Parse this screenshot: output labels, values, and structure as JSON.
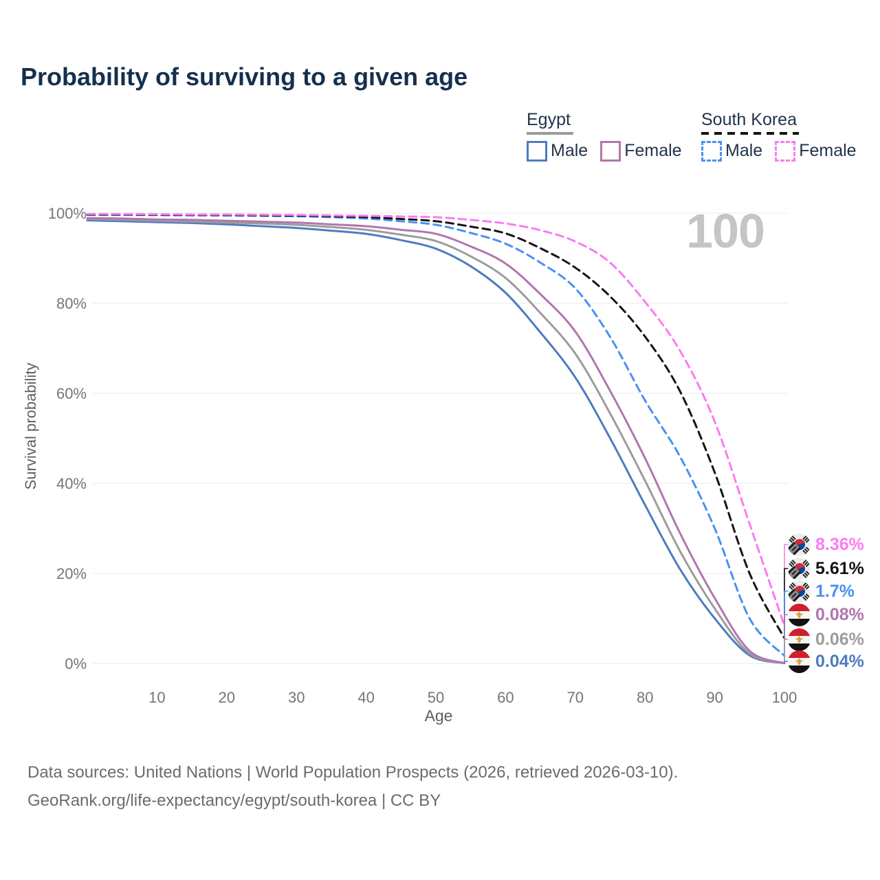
{
  "title": "Probability of surviving to a given age",
  "annotation_age": "100",
  "legend": {
    "groups": [
      {
        "label": "Egypt",
        "line_style": "solid",
        "items": [
          {
            "label": "Male",
            "color": "#4d7cc0"
          },
          {
            "label": "Female",
            "color": "#b176ad"
          }
        ]
      },
      {
        "label": "South Korea",
        "line_style": "dashed",
        "items": [
          {
            "label": "Male",
            "color": "#4a90f5"
          },
          {
            "label": "Female",
            "color": "#fb7bf0"
          }
        ]
      }
    ]
  },
  "chart_data": {
    "type": "line",
    "title": "Probability of surviving to a given age",
    "xlabel": "Age",
    "ylabel": "Survival probability",
    "xlim": [
      0,
      100
    ],
    "ylim": [
      0,
      100
    ],
    "grid": "horizontal",
    "x_ticks": [
      {
        "value": 10,
        "label": "10"
      },
      {
        "value": 20,
        "label": "20"
      },
      {
        "value": 30,
        "label": "30"
      },
      {
        "value": 40,
        "label": "40"
      },
      {
        "value": 50,
        "label": "50"
      },
      {
        "value": 60,
        "label": "60"
      },
      {
        "value": 70,
        "label": "70"
      },
      {
        "value": 80,
        "label": "80"
      },
      {
        "value": 90,
        "label": "90"
      },
      {
        "value": 100,
        "label": "100"
      }
    ],
    "y_ticks": [
      {
        "value": 0,
        "label": "0%"
      },
      {
        "value": 20,
        "label": "20%"
      },
      {
        "value": 40,
        "label": "40%"
      },
      {
        "value": 60,
        "label": "60%"
      },
      {
        "value": 80,
        "label": "80%"
      },
      {
        "value": 100,
        "label": "100%"
      }
    ],
    "x": [
      0,
      5,
      10,
      15,
      20,
      25,
      30,
      35,
      40,
      45,
      50,
      55,
      60,
      65,
      70,
      75,
      80,
      85,
      90,
      95,
      100
    ],
    "series": [
      {
        "id": "egypt-male",
        "name": "Egypt Male",
        "country": "Egypt",
        "sex": "Male",
        "color": "#4d7cc0",
        "dashed": false,
        "flag": "eg",
        "end_label": "0.04%",
        "values": [
          98.4,
          98.2,
          98.0,
          97.8,
          97.5,
          97.1,
          96.7,
          96.1,
          95.4,
          94.0,
          92.1,
          88.2,
          82.3,
          73.5,
          63.5,
          50.0,
          35.2,
          21.0,
          10.0,
          1.8,
          0.04
        ]
      },
      {
        "id": "egypt-both",
        "name": "Egypt Both sexes",
        "country": "Egypt",
        "sex": "Both sexes",
        "color": "#9c9c9c",
        "dashed": false,
        "flag": "eg",
        "end_label": "0.06%",
        "values": [
          98.7,
          98.5,
          98.3,
          98.1,
          97.9,
          97.7,
          97.4,
          96.9,
          96.3,
          95.2,
          93.8,
          90.4,
          85.6,
          77.8,
          68.8,
          55.5,
          40.6,
          25.0,
          12.2,
          2.2,
          0.06
        ]
      },
      {
        "id": "egypt-female",
        "name": "Egypt Female",
        "country": "Egypt",
        "sex": "Female",
        "color": "#b176ad",
        "dashed": false,
        "flag": "eg",
        "end_label": "0.08%",
        "values": [
          98.9,
          98.8,
          98.6,
          98.5,
          98.3,
          98.1,
          97.9,
          97.5,
          97.1,
          96.3,
          95.4,
          92.6,
          88.8,
          82.0,
          73.7,
          60.5,
          45.6,
          29.0,
          14.5,
          2.8,
          0.08
        ]
      },
      {
        "id": "south-korea-male",
        "name": "South Korea Male",
        "country": "South Korea",
        "sex": "Male",
        "color": "#4a90f5",
        "dashed": true,
        "flag": "kr",
        "end_label": "1.7%",
        "values": [
          99.6,
          99.6,
          99.55,
          99.5,
          99.45,
          99.4,
          99.3,
          99.1,
          98.8,
          98.2,
          97.4,
          95.6,
          93.2,
          89.0,
          83.3,
          72.5,
          58.4,
          46.0,
          30.0,
          10.0,
          1.7
        ]
      },
      {
        "id": "south-korea-both",
        "name": "South Korea Both sexes",
        "country": "South Korea",
        "sex": "Both sexes",
        "color": "#141414",
        "dashed": true,
        "flag": "kr",
        "end_label": "5.61%",
        "values": [
          99.7,
          99.7,
          99.65,
          99.6,
          99.6,
          99.5,
          99.45,
          99.3,
          99.1,
          98.7,
          98.2,
          97.0,
          95.5,
          92.2,
          87.9,
          81.5,
          72.6,
          60.5,
          42.4,
          20.0,
          5.61
        ]
      },
      {
        "id": "south-korea-female",
        "name": "South Korea Female",
        "country": "South Korea",
        "sex": "Female",
        "color": "#fb7bf0",
        "dashed": true,
        "flag": "kr",
        "end_label": "8.36%",
        "values": [
          99.8,
          99.8,
          99.75,
          99.7,
          99.7,
          99.65,
          99.6,
          99.5,
          99.4,
          99.25,
          99.1,
          98.5,
          97.7,
          96.2,
          93.7,
          89.0,
          80.3,
          69.5,
          53.7,
          31.0,
          8.36
        ]
      }
    ]
  },
  "source": {
    "line1": "Data sources: United Nations | World Population Prospects (2026, retrieved 2026-03-10).",
    "line2": "GeoRank.org/life-expectancy/egypt/south-korea | CC BY"
  }
}
